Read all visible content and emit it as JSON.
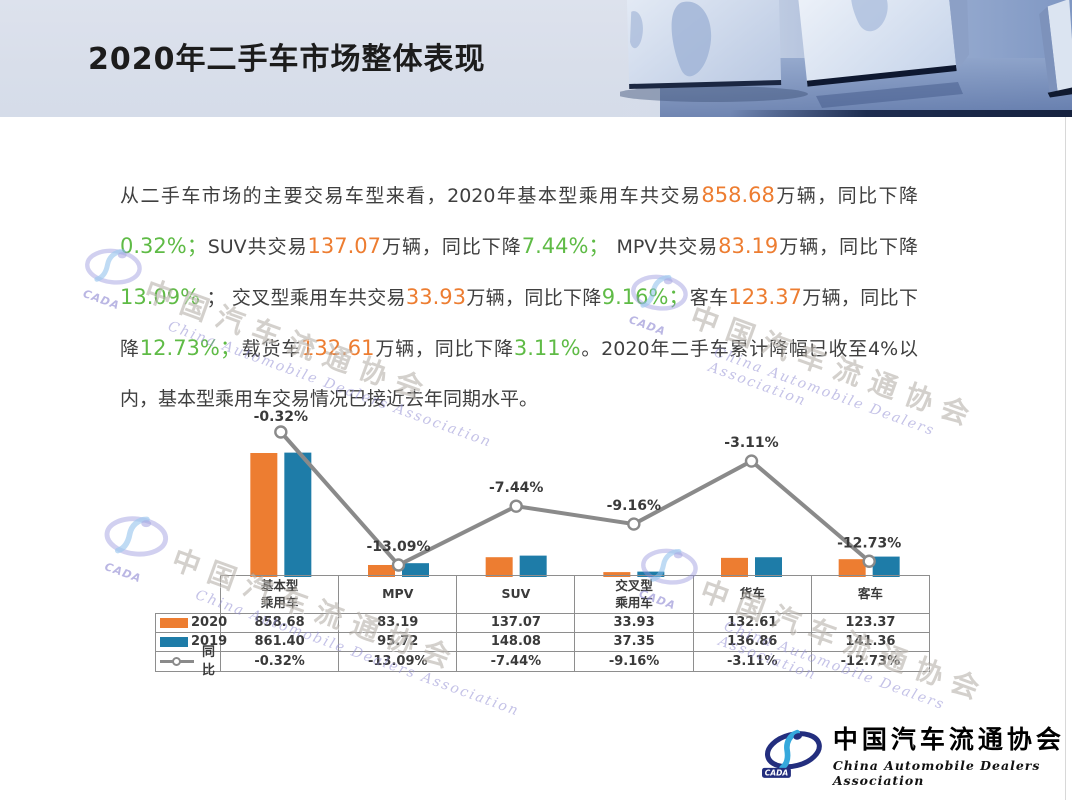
{
  "header": {
    "title": "2020年二手车市场整体表现"
  },
  "paragraph": {
    "segments": [
      {
        "style": "n",
        "text": "从二手车市场的主要交易车型来看，2020年基本型乘用车共交易"
      },
      {
        "style": "o",
        "text": "858.68"
      },
      {
        "style": "n",
        "text": "万辆，同比下降"
      },
      {
        "style": "g",
        "text": "0.32%；"
      },
      {
        "style": "n",
        "text": "SUV共交易"
      },
      {
        "style": "o",
        "text": "137.07"
      },
      {
        "style": "n",
        "text": "万辆，同比下降"
      },
      {
        "style": "g",
        "text": "7.44%；"
      },
      {
        "style": "n",
        "text": " MPV共交易"
      },
      {
        "style": "o",
        "text": "83.19"
      },
      {
        "style": "n",
        "text": "万辆，同比下降"
      },
      {
        "style": "g",
        "text": "13.09%"
      },
      {
        "style": "n",
        "text": " ； 交叉型乘用车共交易"
      },
      {
        "style": "o",
        "text": "33.93"
      },
      {
        "style": "n",
        "text": "万辆，同比下降"
      },
      {
        "style": "g",
        "text": "9.16%；"
      },
      {
        "style": "n",
        "text": "客车"
      },
      {
        "style": "o",
        "text": "123.37"
      },
      {
        "style": "n",
        "text": "万辆，同比下降"
      },
      {
        "style": "g",
        "text": "12.73%；"
      },
      {
        "style": "n",
        "text": "载货车"
      },
      {
        "style": "o",
        "text": "132.61"
      },
      {
        "style": "n",
        "text": "万辆，同比下降"
      },
      {
        "style": "g",
        "text": "3.11%"
      },
      {
        "style": "n",
        "text": "。2020年二手车累计降幅已收至4%以内，基本型乘用车交易情况已接近去年同期水平。"
      }
    ]
  },
  "chart_data": {
    "type": "combo-bar-line",
    "categories": [
      "基本型乘用车",
      "MPV",
      "SUV",
      "交叉型乘用车",
      "货车",
      "客车"
    ],
    "unit": "万辆",
    "gridlines": false,
    "legend_position": "table-left",
    "bar_series": [
      {
        "name": "2020",
        "color": "#ED7D31",
        "values": [
          858.68,
          83.19,
          137.07,
          33.93,
          132.61,
          123.37
        ]
      },
      {
        "name": "2019",
        "color": "#1E7CA8",
        "values": [
          861.4,
          95.72,
          148.08,
          37.35,
          136.86,
          141.36
        ]
      }
    ],
    "line_series": {
      "name": "同比",
      "color": "#8A8A8A",
      "values_percent": [
        -0.32,
        -13.09,
        -7.44,
        -9.16,
        -3.11,
        -12.73
      ],
      "labels": [
        "-0.32%",
        "-13.09%",
        "-7.44%",
        "-9.16%",
        "-3.11%",
        "-12.73%"
      ]
    }
  },
  "table": {
    "columns": [
      "基本型\n乘用车",
      "MPV",
      "SUV",
      "交叉型\n乘用车",
      "货车",
      "客车"
    ],
    "rows": [
      {
        "legend": "bar",
        "color": "#ED7D31",
        "label": "2020",
        "values": [
          "858.68",
          "83.19",
          "137.07",
          "33.93",
          "132.61",
          "123.37"
        ]
      },
      {
        "legend": "bar",
        "color": "#1E7CA8",
        "label": "2019",
        "values": [
          "861.40",
          "95.72",
          "148.08",
          "37.35",
          "136.86",
          "141.36"
        ]
      },
      {
        "legend": "line",
        "color": "#8A8A8A",
        "label": "同比",
        "values": [
          "-0.32%",
          "-13.09%",
          "-7.44%",
          "-9.16%",
          "-3.11%",
          "-12.73%"
        ]
      }
    ]
  },
  "watermark": {
    "badge": "CADA",
    "cn": "中国汽车流通协会",
    "en": "China Automobile Dealers Association"
  },
  "footer_logo": {
    "badge": "CADA",
    "cn": "中国汽车流通协会",
    "en": "China Automobile Dealers Association"
  },
  "colors": {
    "orange": "#ED7D31",
    "blue": "#1E7CA8",
    "green": "#5FBB46",
    "line_gray": "#8A8A8A"
  }
}
